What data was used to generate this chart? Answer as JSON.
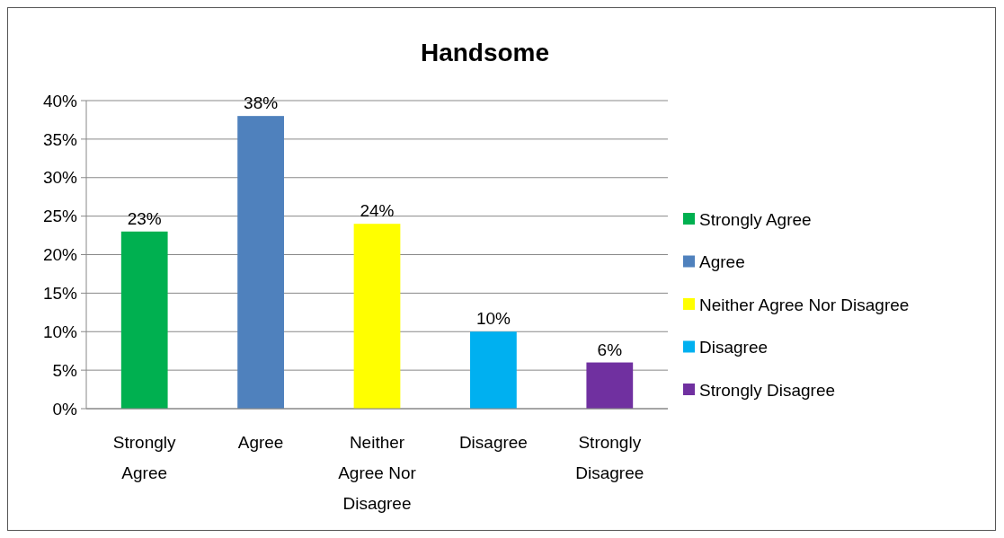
{
  "chart_data": {
    "type": "bar",
    "title": "Handsome",
    "stacked": true,
    "categories": [
      "Strongly Agree",
      "Agree",
      "Neither Agree Nor Disagree",
      "Disagree",
      "Strongly Disagree"
    ],
    "series": [
      {
        "name": "Strongly Agree",
        "color": "#00b050",
        "values": [
          23,
          null,
          null,
          null,
          null
        ],
        "value_labels": [
          "23%",
          null,
          null,
          null,
          null
        ]
      },
      {
        "name": "Agree",
        "color": "#4f81bd",
        "values": [
          null,
          38,
          null,
          null,
          null
        ],
        "value_labels": [
          null,
          "38%",
          null,
          null,
          null
        ]
      },
      {
        "name": "Neither Agree Nor Disagree",
        "color": "#ffff00",
        "values": [
          null,
          null,
          24,
          null,
          null
        ],
        "value_labels": [
          null,
          null,
          "24%",
          null,
          null
        ]
      },
      {
        "name": "Disagree",
        "color": "#00b0f0",
        "values": [
          null,
          null,
          null,
          10,
          null
        ],
        "value_labels": [
          null,
          null,
          null,
          "10%",
          null
        ]
      },
      {
        "name": "Strongly Disagree",
        "color": "#7030a0",
        "values": [
          null,
          null,
          null,
          null,
          6
        ],
        "value_labels": [
          null,
          null,
          null,
          null,
          "6%"
        ]
      }
    ],
    "ylim": [
      0,
      40
    ],
    "yticks": [
      {
        "value": 0,
        "label": "0%"
      },
      {
        "value": 5,
        "label": "5%"
      },
      {
        "value": 10,
        "label": "10%"
      },
      {
        "value": 15,
        "label": "15%"
      },
      {
        "value": 20,
        "label": "20%"
      },
      {
        "value": 25,
        "label": "25%"
      },
      {
        "value": 30,
        "label": "30%"
      },
      {
        "value": 35,
        "label": "35%"
      },
      {
        "value": 40,
        "label": "40%"
      }
    ],
    "grid": "y",
    "legend": "right"
  }
}
